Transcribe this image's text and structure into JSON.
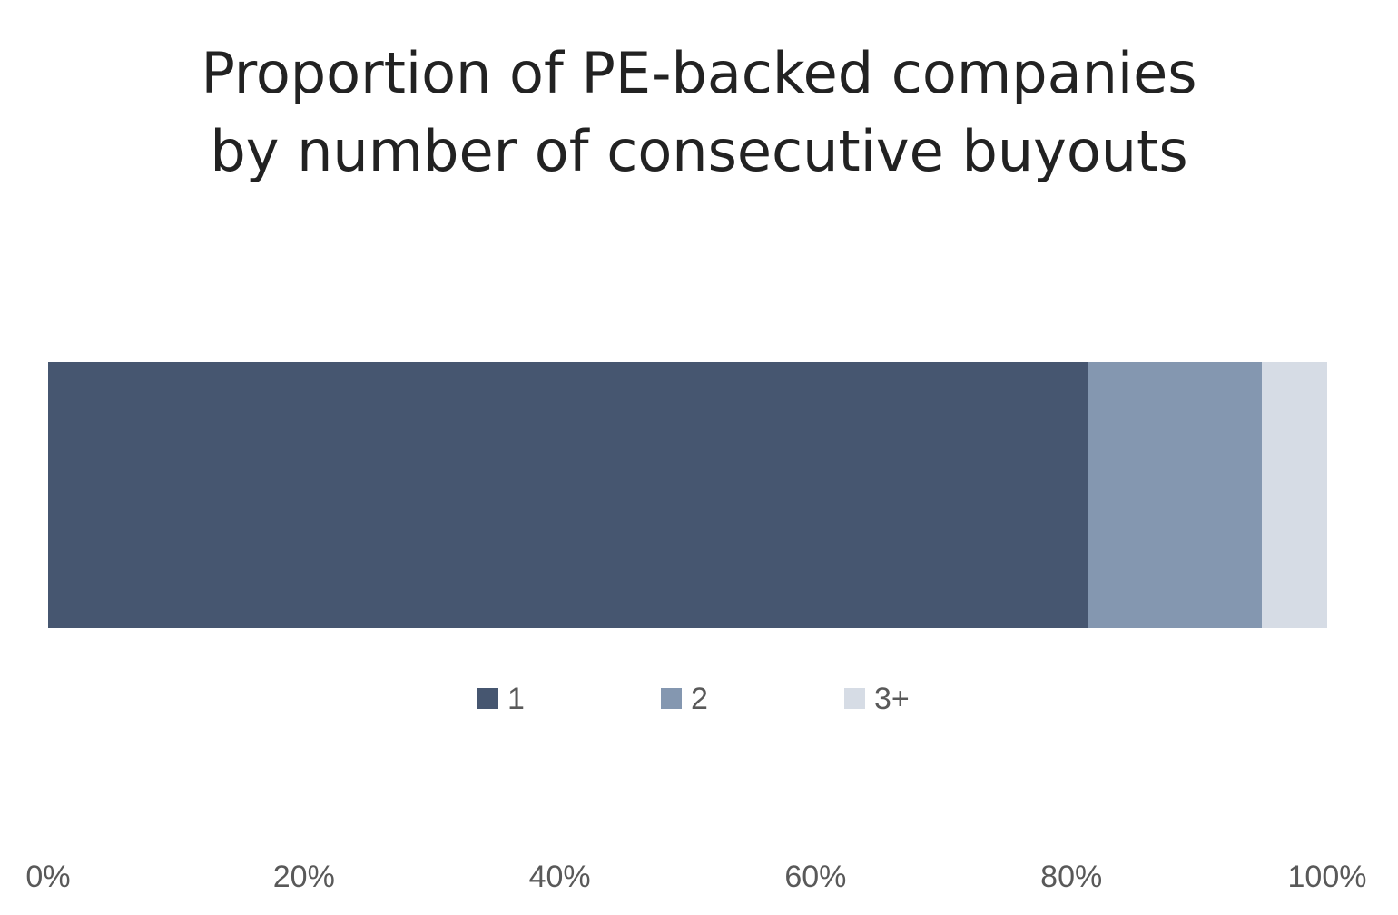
{
  "chart_data": {
    "type": "bar",
    "orientation": "horizontal",
    "stacked": true,
    "title_lines": [
      "Proportion of PE-backed companies",
      "by number of consecutive buyouts"
    ],
    "categories": [
      ""
    ],
    "series": [
      {
        "name": "1",
        "values": [
          81.3
        ],
        "color": "#465670"
      },
      {
        "name": "2",
        "values": [
          13.6
        ],
        "color": "#8497b0"
      },
      {
        "name": "3+",
        "values": [
          5.1
        ],
        "color": "#d6dce5"
      }
    ],
    "xlim": [
      0,
      100
    ],
    "x_ticks": [
      "0%",
      "20%",
      "40%",
      "60%",
      "80%",
      "100%"
    ],
    "legend_position": "below-bar",
    "grid": false
  }
}
